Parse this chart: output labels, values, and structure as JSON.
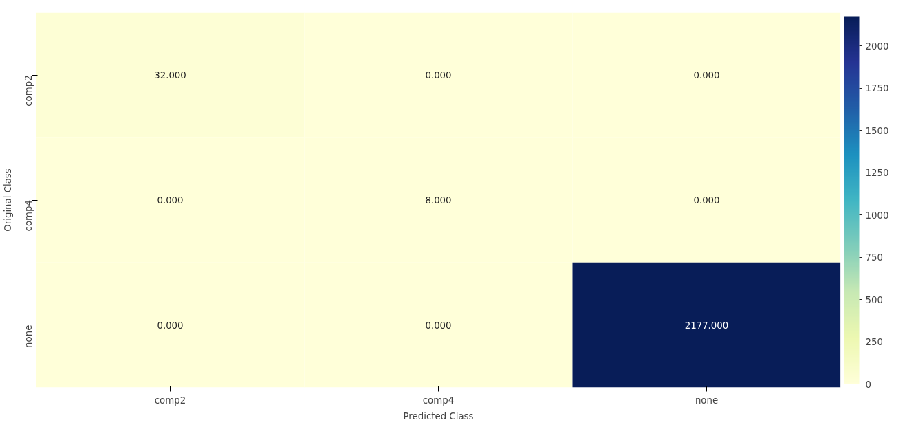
{
  "chart_data": {
    "type": "heatmap",
    "xlabel": "Predicted Class",
    "ylabel": "Original Class",
    "categories": [
      "comp2",
      "comp4",
      "none"
    ],
    "y_categories": [
      "comp2",
      "comp4",
      "none"
    ],
    "cells": [
      [
        32,
        0,
        0
      ],
      [
        0,
        8,
        0
      ],
      [
        0,
        0,
        2177
      ]
    ],
    "cell_labels": [
      [
        "32.000",
        "0.000",
        "0.000"
      ],
      [
        "0.000",
        "8.000",
        "0.000"
      ],
      [
        "0.000",
        "0.000",
        "2177.000"
      ]
    ],
    "clim": [
      0,
      2177
    ],
    "cticks": [
      0,
      250,
      500,
      750,
      1000,
      1250,
      1500,
      1750,
      2000
    ]
  }
}
